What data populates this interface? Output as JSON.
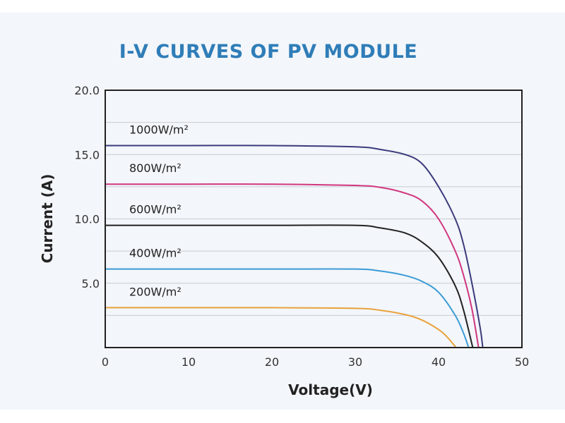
{
  "chart_data": {
    "type": "line",
    "title": "I-V CURVES OF PV MODULE",
    "xlabel": "Voltage(V)",
    "ylabel": "Current (A)",
    "xlim": [
      0,
      50
    ],
    "ylim": [
      0,
      20
    ],
    "xticks": [
      "0",
      "10",
      "20",
      "30",
      "40",
      "50"
    ],
    "xtick_values": [
      0,
      10,
      20,
      30,
      40,
      50
    ],
    "yticks": [
      "5.0",
      "10.0",
      "15.0",
      "20.0"
    ],
    "ytick_values": [
      5,
      10,
      15,
      20
    ],
    "grid": "horizontal every 2.5 A",
    "series": [
      {
        "name": "1000W/m²",
        "color": "#3b3b7c",
        "v": [
          0,
          10,
          20,
          30,
          33,
          36,
          38,
          40,
          42,
          43,
          44,
          45,
          45.3
        ],
        "i": [
          15.7,
          15.7,
          15.7,
          15.6,
          15.4,
          15.0,
          14.3,
          12.5,
          10.0,
          8.0,
          5.0,
          1.5,
          0
        ]
      },
      {
        "name": "800W/m²",
        "color": "#d1367f",
        "v": [
          0,
          10,
          20,
          30,
          33,
          36,
          38,
          40,
          42,
          43,
          44,
          44.8
        ],
        "i": [
          12.7,
          12.7,
          12.7,
          12.6,
          12.45,
          12.0,
          11.4,
          10.0,
          7.5,
          5.6,
          3.0,
          0
        ]
      },
      {
        "name": "600W/m²",
        "color": "#222222",
        "v": [
          0,
          10,
          20,
          30,
          33,
          36,
          38,
          40,
          42,
          43,
          44.1
        ],
        "i": [
          9.5,
          9.5,
          9.5,
          9.5,
          9.3,
          8.9,
          8.2,
          7.0,
          4.8,
          2.9,
          0
        ]
      },
      {
        "name": "400W/m²",
        "color": "#3b9bd6",
        "v": [
          0,
          10,
          20,
          30,
          33,
          36,
          38,
          40,
          42,
          43,
          43.6
        ],
        "i": [
          6.1,
          6.1,
          6.1,
          6.1,
          5.95,
          5.6,
          5.15,
          4.3,
          2.5,
          1.1,
          0
        ]
      },
      {
        "name": "200W/m²",
        "color": "#e9a23c",
        "v": [
          0,
          10,
          20,
          30,
          33,
          36,
          38,
          40,
          41,
          42.1
        ],
        "i": [
          3.1,
          3.1,
          3.1,
          3.05,
          2.9,
          2.56,
          2.14,
          1.4,
          0.84,
          0
        ]
      }
    ]
  }
}
